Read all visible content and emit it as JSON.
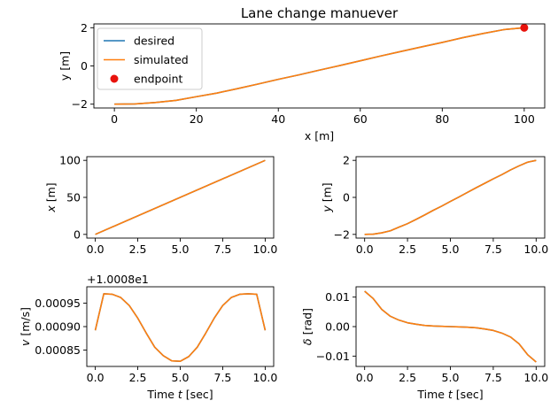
{
  "colors": {
    "desired": "#1f77b4",
    "simulated": "#ff7f0e",
    "endpoint": "#e8120c"
  },
  "chart_data": [
    {
      "id": "main",
      "type": "line",
      "title": "Lane change manuever",
      "xlabel": "x [m]",
      "ylabel": "y [m]",
      "xlim": [
        -5,
        105
      ],
      "ylim": [
        -2.2,
        2.2
      ],
      "xticks": [
        0,
        20,
        40,
        60,
        80,
        100
      ],
      "xtick_labels": [
        "0",
        "20",
        "40",
        "60",
        "80",
        "100"
      ],
      "yticks": [
        -2,
        0,
        2
      ],
      "ytick_labels": [
        "−2",
        "0",
        "2"
      ],
      "legend": {
        "position": "upper-left",
        "entries": [
          "desired",
          "simulated",
          "endpoint"
        ]
      },
      "series": [
        {
          "name": "desired",
          "x": [
            0,
            5,
            10,
            15,
            20,
            25,
            30,
            35,
            40,
            45,
            50,
            55,
            60,
            65,
            70,
            75,
            80,
            85,
            90,
            95,
            100
          ],
          "y": [
            -2,
            -1.988,
            -1.915,
            -1.804,
            -1.61,
            -1.42,
            -1.19,
            -0.95,
            -0.7,
            -0.47,
            -0.22,
            0.02,
            0.27,
            0.52,
            0.76,
            1.0,
            1.23,
            1.48,
            1.7,
            1.9,
            2.0
          ]
        },
        {
          "name": "simulated",
          "x": [
            0,
            5,
            10,
            15,
            20,
            25,
            30,
            35,
            40,
            45,
            50,
            55,
            60,
            65,
            70,
            75,
            80,
            85,
            90,
            95,
            100
          ],
          "y": [
            -2,
            -1.988,
            -1.915,
            -1.804,
            -1.61,
            -1.42,
            -1.19,
            -0.95,
            -0.7,
            -0.47,
            -0.22,
            0.02,
            0.27,
            0.52,
            0.76,
            1.0,
            1.23,
            1.48,
            1.7,
            1.9,
            2.0
          ]
        }
      ],
      "points": [
        {
          "name": "endpoint",
          "x": 100,
          "y": 2.0
        }
      ]
    },
    {
      "id": "xt",
      "type": "line",
      "xlabel": "",
      "ylabel": "x [m]",
      "ylabel_italic_part": "x",
      "xlim": [
        -0.5,
        10.5
      ],
      "ylim": [
        -5,
        105
      ],
      "xticks": [
        0,
        2.5,
        5,
        7.5,
        10
      ],
      "xtick_labels": [
        "0.0",
        "2.5",
        "5.0",
        "7.5",
        "10.0"
      ],
      "yticks": [
        0,
        50,
        100
      ],
      "ytick_labels": [
        "0",
        "50",
        "100"
      ],
      "series": [
        {
          "name": "desired",
          "x": [
            0,
            10
          ],
          "y": [
            0,
            100
          ]
        },
        {
          "name": "simulated",
          "x": [
            0,
            10
          ],
          "y": [
            0,
            100
          ]
        }
      ]
    },
    {
      "id": "yt",
      "type": "line",
      "xlabel": "",
      "ylabel": "y [m]",
      "ylabel_italic_part": "y",
      "xlim": [
        -0.5,
        10.5
      ],
      "ylim": [
        -2.2,
        2.2
      ],
      "xticks": [
        0,
        2.5,
        5,
        7.5,
        10
      ],
      "xtick_labels": [
        "0.0",
        "2.5",
        "5.0",
        "7.5",
        "10.0"
      ],
      "yticks": [
        -2,
        0,
        2
      ],
      "ytick_labels": [
        "−2",
        "0",
        "2"
      ],
      "series": [
        {
          "name": "desired",
          "x": [
            0,
            0.5,
            1,
            1.5,
            2,
            2.5,
            3,
            3.5,
            4,
            4.5,
            5,
            5.5,
            6,
            6.5,
            7,
            7.5,
            8,
            8.5,
            9,
            9.5,
            10
          ],
          "y": [
            -2,
            -1.988,
            -1.915,
            -1.804,
            -1.61,
            -1.42,
            -1.19,
            -0.95,
            -0.7,
            -0.47,
            -0.22,
            0.02,
            0.27,
            0.52,
            0.76,
            1.0,
            1.23,
            1.48,
            1.7,
            1.9,
            2.0
          ]
        },
        {
          "name": "simulated",
          "x": [
            0,
            0.5,
            1,
            1.5,
            2,
            2.5,
            3,
            3.5,
            4,
            4.5,
            5,
            5.5,
            6,
            6.5,
            7,
            7.5,
            8,
            8.5,
            9,
            9.5,
            10
          ],
          "y": [
            -2,
            -1.988,
            -1.915,
            -1.804,
            -1.61,
            -1.42,
            -1.19,
            -0.95,
            -0.7,
            -0.47,
            -0.22,
            0.02,
            0.27,
            0.52,
            0.76,
            1.0,
            1.23,
            1.48,
            1.7,
            1.9,
            2.0
          ]
        }
      ]
    },
    {
      "id": "vt",
      "type": "line",
      "xlabel": "Time t [sec]",
      "xlabel_italic_part": "t",
      "ylabel": "v [m/s]",
      "ylabel_italic_part": "v",
      "offset_text": "+1.0008e1",
      "xlim": [
        -0.5,
        10.5
      ],
      "ylim": [
        0.000815,
        0.000985
      ],
      "xticks": [
        0,
        2.5,
        5,
        7.5,
        10
      ],
      "xtick_labels": [
        "0.0",
        "2.5",
        "5.0",
        "7.5",
        "10.0"
      ],
      "yticks": [
        0.00085,
        0.0009,
        0.00095
      ],
      "ytick_labels": [
        "0.00085",
        "0.00090",
        "0.00095"
      ],
      "series": [
        {
          "name": "desired",
          "x": [
            0,
            0.5,
            1,
            1.5,
            2,
            2.5,
            3,
            3.5,
            4,
            4.5,
            5,
            5.5,
            6,
            6.5,
            7,
            7.5,
            8,
            8.5,
            9,
            9.5,
            10
          ],
          "y": [
            0.000892,
            0.00097,
            0.000969,
            0.000962,
            0.000945,
            0.000918,
            0.000886,
            0.000856,
            0.000838,
            0.000827,
            0.000826,
            0.000836,
            0.000856,
            0.000886,
            0.000918,
            0.000945,
            0.000962,
            0.000969,
            0.00097,
            0.000969,
            0.000892
          ]
        },
        {
          "name": "simulated",
          "x": [
            0,
            0.5,
            1,
            1.5,
            2,
            2.5,
            3,
            3.5,
            4,
            4.5,
            5,
            5.5,
            6,
            6.5,
            7,
            7.5,
            8,
            8.5,
            9,
            9.5,
            10
          ],
          "y": [
            0.000892,
            0.00097,
            0.000969,
            0.000962,
            0.000945,
            0.000918,
            0.000886,
            0.000856,
            0.000838,
            0.000827,
            0.000826,
            0.000836,
            0.000856,
            0.000886,
            0.000918,
            0.000945,
            0.000962,
            0.000969,
            0.00097,
            0.000969,
            0.000892
          ]
        }
      ]
    },
    {
      "id": "dt",
      "type": "line",
      "xlabel": "Time t [sec]",
      "xlabel_italic_part": "t",
      "ylabel": "δ [rad]",
      "ylabel_italic_part": "δ",
      "xlim": [
        -0.5,
        10.5
      ],
      "ylim": [
        -0.0135,
        0.0135
      ],
      "xticks": [
        0,
        2.5,
        5,
        7.5,
        10
      ],
      "xtick_labels": [
        "0.0",
        "2.5",
        "5.0",
        "7.5",
        "10.0"
      ],
      "yticks": [
        -0.01,
        0,
        0.01
      ],
      "ytick_labels": [
        "−0.01",
        "0.00",
        "0.01"
      ],
      "series": [
        {
          "name": "desired",
          "x": [
            0,
            0.5,
            1,
            1.5,
            2,
            2.5,
            3,
            3.5,
            4,
            4.5,
            5,
            5.5,
            6,
            6.5,
            7,
            7.5,
            8,
            8.5,
            9,
            9.5,
            10
          ],
          "y": [
            0.012,
            0.0095,
            0.0058,
            0.0035,
            0.0022,
            0.0013,
            0.0008,
            0.0004,
            0.0002,
            0.0001,
            0.0,
            -0.0001,
            -0.0002,
            -0.0004,
            -0.0008,
            -0.0013,
            -0.0022,
            -0.0035,
            -0.0058,
            -0.0095,
            -0.012
          ]
        },
        {
          "name": "simulated",
          "x": [
            0,
            0.5,
            1,
            1.5,
            2,
            2.5,
            3,
            3.5,
            4,
            4.5,
            5,
            5.5,
            6,
            6.5,
            7,
            7.5,
            8,
            8.5,
            9,
            9.5,
            10
          ],
          "y": [
            0.012,
            0.0095,
            0.0058,
            0.0035,
            0.0022,
            0.0013,
            0.0008,
            0.0004,
            0.0002,
            0.0001,
            0.0,
            -0.0001,
            -0.0002,
            -0.0004,
            -0.0008,
            -0.0013,
            -0.0022,
            -0.0035,
            -0.0058,
            -0.0095,
            -0.012
          ]
        }
      ]
    }
  ]
}
